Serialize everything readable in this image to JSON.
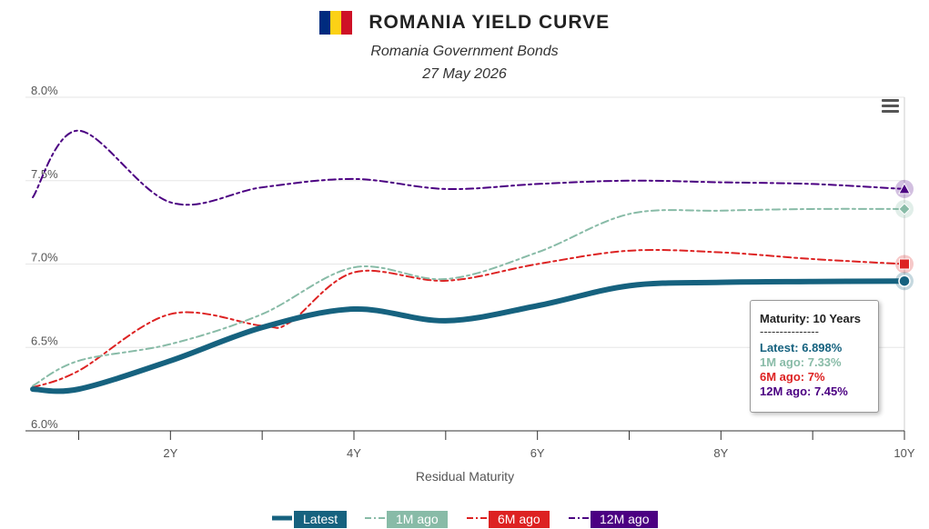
{
  "header": {
    "title": "ROMANIA YIELD CURVE",
    "subtitle": "Romania Government Bonds",
    "date": "27 May 2026",
    "flag_colors": [
      "#002B7F",
      "#FCD116",
      "#CE1126"
    ],
    "menu_icon": "hamburger-menu-icon"
  },
  "chart_data": {
    "type": "line",
    "title": "ROMANIA YIELD CURVE",
    "subtitle": "Romania Government Bonds",
    "xlabel": "Residual Maturity",
    "ylabel": "",
    "x_tick_labels": [
      "2Y",
      "4Y",
      "6Y",
      "8Y",
      "10Y"
    ],
    "x_tick_values": [
      2,
      4,
      6,
      8,
      10
    ],
    "xlim": [
      0.42,
      10
    ],
    "y_tick_labels": [
      "6.0%",
      "6.5%",
      "7.0%",
      "7.5%",
      "8.0%"
    ],
    "y_tick_values": [
      6.0,
      6.5,
      7.0,
      7.5,
      8.0
    ],
    "ylim": [
      6.0,
      8.0
    ],
    "grid": true,
    "legend_position": "bottom",
    "series": [
      {
        "name": "Latest",
        "color": "#16627F",
        "dash": "solid",
        "width": 6,
        "marker": "circle",
        "x": [
          0.5,
          1.0,
          2.0,
          3.0,
          4.0,
          5.0,
          6.0,
          7.0,
          8.0,
          9.0,
          10.0
        ],
        "y": [
          6.25,
          6.25,
          6.42,
          6.62,
          6.73,
          6.66,
          6.75,
          6.87,
          6.89,
          6.895,
          6.898
        ]
      },
      {
        "name": "1M ago",
        "color": "#88BBA7",
        "dash": "dash",
        "width": 2,
        "marker": "diamond",
        "x": [
          0.5,
          1.0,
          2.0,
          3.0,
          4.0,
          5.0,
          6.0,
          7.0,
          8.0,
          9.0,
          10.0
        ],
        "y": [
          6.27,
          6.42,
          6.52,
          6.7,
          6.98,
          6.91,
          7.07,
          7.3,
          7.32,
          7.33,
          7.33
        ]
      },
      {
        "name": "6M ago",
        "color": "#DD2222",
        "dash": "dash",
        "width": 2,
        "marker": "square",
        "x": [
          0.5,
          1.0,
          2.0,
          3.0,
          3.3,
          4.0,
          5.0,
          6.0,
          7.0,
          8.0,
          9.0,
          10.0
        ],
        "y": [
          6.26,
          6.36,
          6.7,
          6.63,
          6.65,
          6.95,
          6.9,
          7.0,
          7.08,
          7.07,
          7.03,
          7.0
        ]
      },
      {
        "name": "12M ago",
        "color": "#4B0082",
        "dash": "dash",
        "width": 2,
        "marker": "triangle",
        "x": [
          0.5,
          1.0,
          2.0,
          3.0,
          4.0,
          5.0,
          6.0,
          7.0,
          8.0,
          9.0,
          10.0
        ],
        "y": [
          7.4,
          7.8,
          7.37,
          7.46,
          7.51,
          7.45,
          7.48,
          7.5,
          7.49,
          7.48,
          7.45
        ]
      }
    ]
  },
  "tooltip": {
    "header": "Maturity: 10 Years",
    "separator": "---------------",
    "rows": [
      {
        "text": "Latest: 6.898%",
        "color": "#16627F"
      },
      {
        "text": "1M ago: 7.33%",
        "color": "#88BBA7"
      },
      {
        "text": "6M ago: 7%",
        "color": "#DD2222"
      },
      {
        "text": "12M ago: 7.45%",
        "color": "#4B0082"
      }
    ]
  }
}
